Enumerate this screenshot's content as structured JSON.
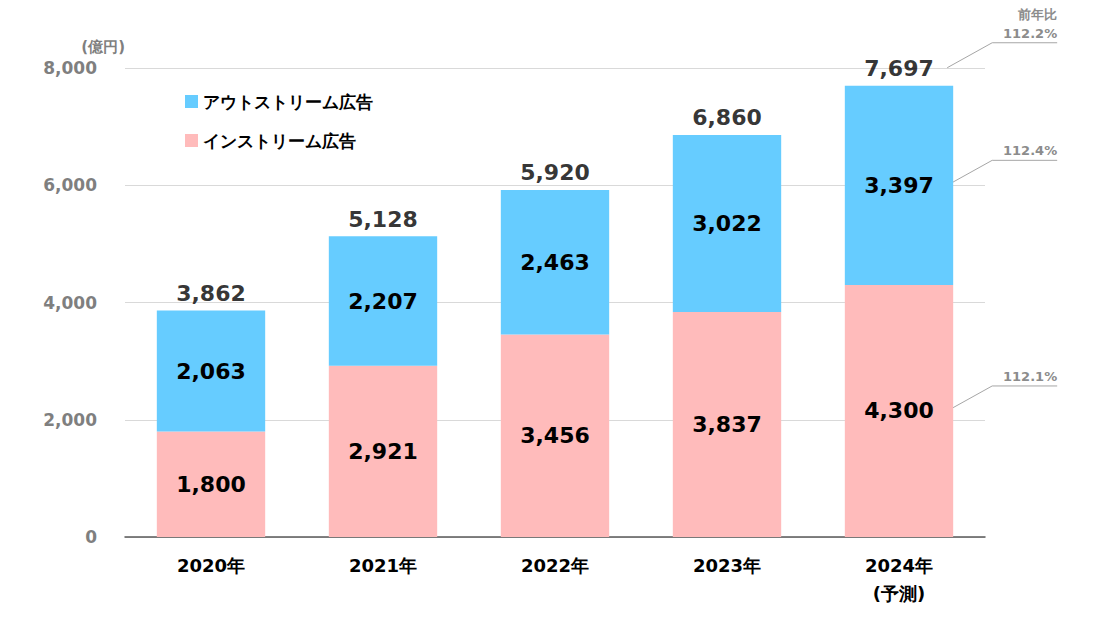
{
  "chart_data": {
    "type": "bar",
    "stacked": true,
    "data_labels": true,
    "grid": true,
    "legend": "top-left",
    "y_label": "(億円)",
    "categories": [
      "2020年",
      "2021年",
      "2022年",
      "2023年",
      "2024年\n(予測)"
    ],
    "series": [
      {
        "name": "インストリーム広告",
        "color": "#ffbbbb",
        "values": [
          1800,
          2921,
          3456,
          3837,
          4300
        ],
        "value_labels": [
          "1,800",
          "2,921",
          "3,456",
          "3,837",
          "4,300"
        ],
        "growth": "112.1%"
      },
      {
        "name": "アウトストリーム広告",
        "color": "#66ccff",
        "values": [
          2063,
          2207,
          2463,
          3022,
          3397
        ],
        "value_labels": [
          "2,063",
          "2,207",
          "2,463",
          "3,022",
          "3,397"
        ],
        "growth": "112.4%"
      }
    ],
    "totals": {
      "values": [
        3862,
        5128,
        5920,
        6860,
        7697
      ],
      "value_labels": [
        "3,862",
        "5,128",
        "5,920",
        "6,860",
        "7,697"
      ],
      "growth": "112.2%"
    },
    "growth_title": "前年比",
    "ylim": [
      0,
      8000
    ],
    "yticks": [
      0,
      {
        "value": 2000,
        "label": "2,000"
      },
      {
        "value": 4000,
        "label": "4,000"
      },
      {
        "value": 6000,
        "label": "6,000"
      },
      {
        "value": 8000,
        "label": "8,000"
      }
    ]
  }
}
